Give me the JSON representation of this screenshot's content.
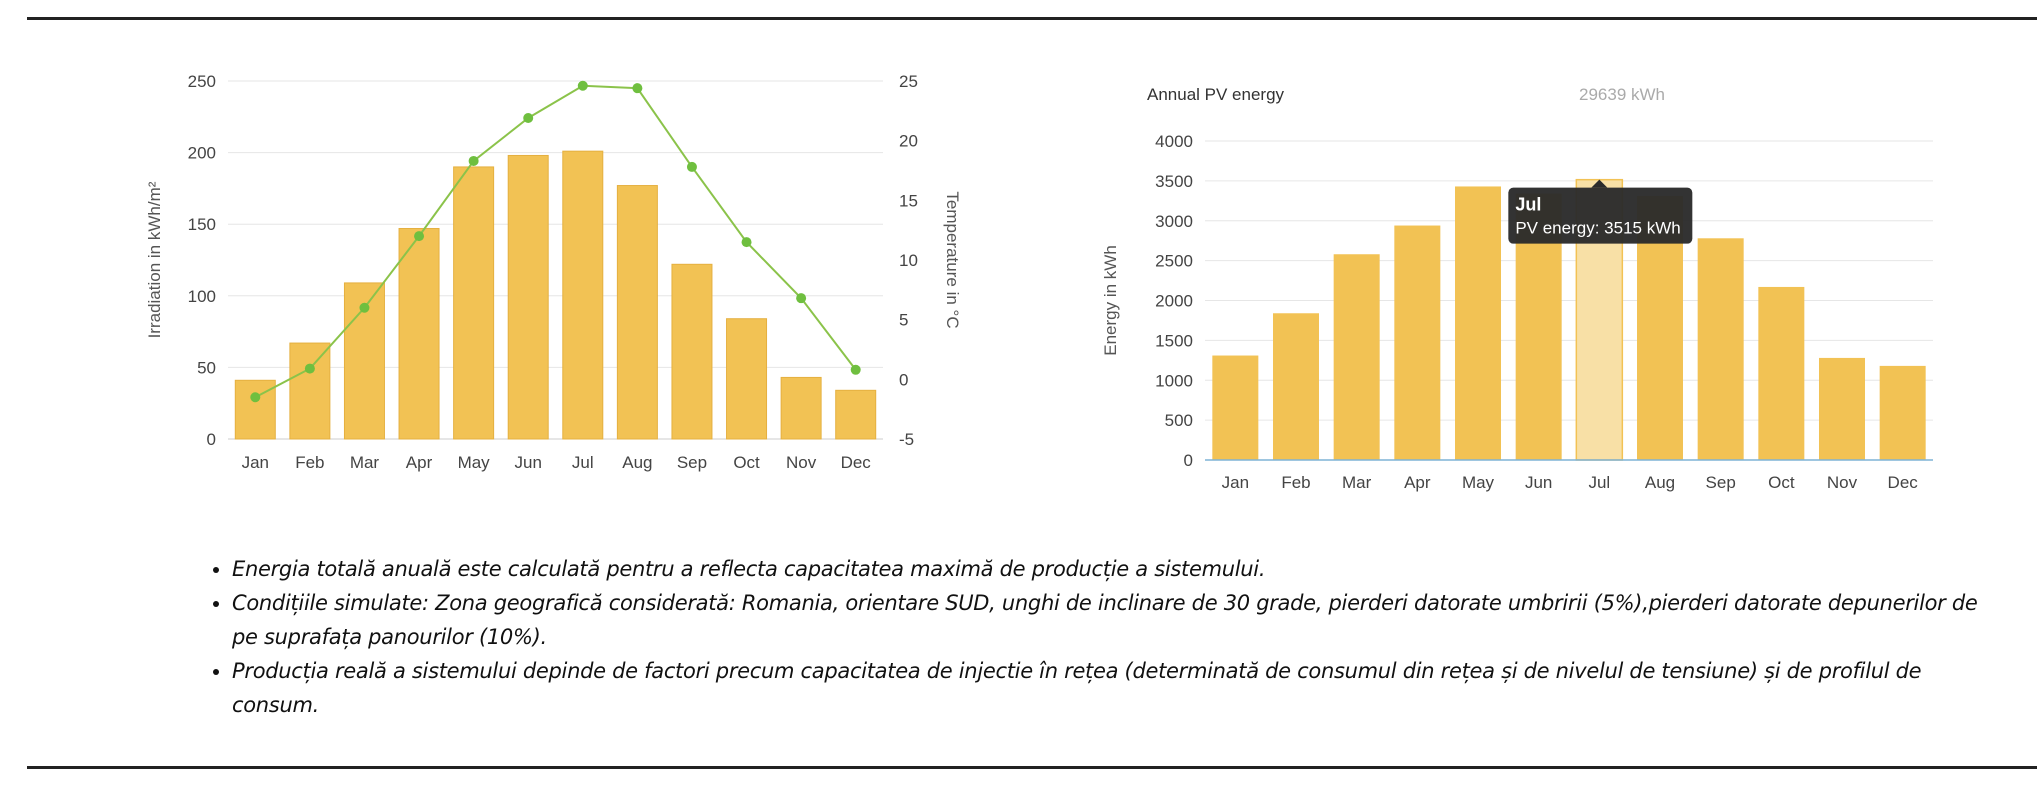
{
  "colors": {
    "bar": "#f2c254",
    "bar_stroke": "#e5b040",
    "bar_highlight": "#f8e0a6",
    "temp_line": "#8bc34a",
    "temp_point": "#6fbf3f",
    "grid": "#e6e6e6",
    "tooltip_bg": "#2b2b2b",
    "baseline": "#7fb3d5",
    "annual_value": "#aaaaaa"
  },
  "chart_data": [
    {
      "type": "bar",
      "categories": [
        "Jan",
        "Feb",
        "Mar",
        "Apr",
        "May",
        "Jun",
        "Jul",
        "Aug",
        "Sep",
        "Oct",
        "Nov",
        "Dec"
      ],
      "series": [
        {
          "values": [
            41,
            67,
            109,
            147,
            190,
            198,
            201,
            177,
            122,
            84,
            43,
            34
          ]
        },
        {
          "type": "line",
          "values": [
            -1.5,
            0.9,
            6.0,
            12.0,
            18.3,
            21.9,
            24.6,
            24.4,
            17.8,
            11.5,
            6.8,
            0.8
          ]
        }
      ],
      "xlabel": "",
      "ylabel": "Irradiation in kWh/m²",
      "y2label": "Temperature in °C",
      "ylim": [
        0,
        250
      ],
      "y2lim": [
        -5,
        25
      ],
      "yticks": [
        "0",
        "50",
        "100",
        "150",
        "200",
        "250"
      ],
      "y2ticks": [
        "-5",
        "0",
        "5",
        "10",
        "15",
        "20",
        "25"
      ],
      "grid": true
    },
    {
      "type": "bar",
      "header_label": "Annual PV energy",
      "header_value": "29639 kWh",
      "categories": [
        "Jan",
        "Feb",
        "Mar",
        "Apr",
        "May",
        "Jun",
        "Jul",
        "Aug",
        "Sep",
        "Oct",
        "Nov",
        "Dec"
      ],
      "series": [
        {
          "values": [
            1310,
            1840,
            2580,
            2940,
            3430,
            3340,
            3515,
            3310,
            2780,
            2170,
            1280,
            1180
          ]
        }
      ],
      "xlabel": "",
      "ylabel": "Energy in kWh",
      "ylim": [
        0,
        4000
      ],
      "yticks": [
        "0",
        "500",
        "1000",
        "1500",
        "2000",
        "2500",
        "3000",
        "3500",
        "4000"
      ],
      "grid": true,
      "highlight_index": 6,
      "tooltip": {
        "title": "Jul",
        "text": "PV energy: 3515 kWh"
      }
    }
  ],
  "notes": [
    "Energia totală anuală este calculată pentru a reflecta capacitatea maximă de producție a sistemului.",
    "Condițiile simulate: Zona geografică considerată: Romania, orientare SUD, unghi de inclinare de 30 grade, pierderi datorate umbririi (5%),pierderi datorate depunerilor de pe suprafața panourilor (10%).",
    "Producția reală a sistemului depinde de factori precum capacitatea de injectie în rețea (determinată de consumul din rețea și de nivelul de tensiune) și de profilul de consum."
  ]
}
